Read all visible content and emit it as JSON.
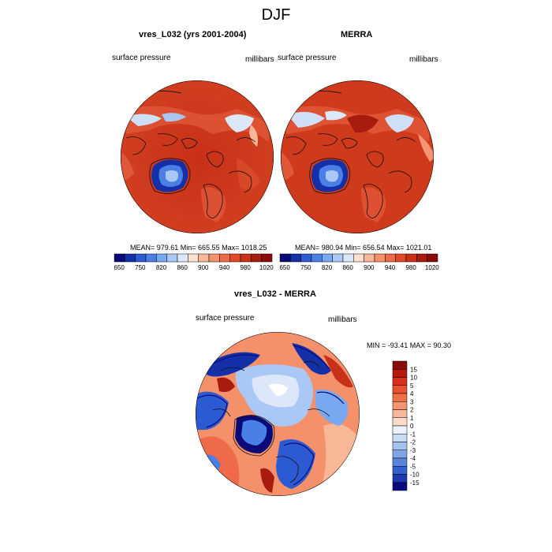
{
  "figure_title": "DJF",
  "chart_data": [
    {
      "type": "heatmap",
      "title": "vres_L032 (yrs 2001-2004)",
      "field": "surface pressure",
      "units": "millibars",
      "projection": "polar stereographic (North Pole)",
      "stats": "MEAN= 979.61  Min= 665.55  Max= 1018.25",
      "mean": 979.61,
      "min": 665.55,
      "max": 1018.25,
      "colorbar": {
        "orientation": "horizontal",
        "tick_labels": [
          "650",
          "750",
          "820",
          "860",
          "900",
          "940",
          "980",
          "1020"
        ],
        "colors": [
          "#0a0a78",
          "#1430a8",
          "#2c5ad2",
          "#4a80e6",
          "#78a8f0",
          "#aac8f6",
          "#dce8fa",
          "#fde0d0",
          "#f8b898",
          "#f4906a",
          "#ee6a48",
          "#e04828",
          "#c83018",
          "#a81c10",
          "#8a0c08"
        ]
      }
    },
    {
      "type": "heatmap",
      "title": "MERRA",
      "field": "surface pressure",
      "units": "millibars",
      "projection": "polar stereographic (North Pole)",
      "stats": "MEAN= 980.94  Min= 656.54  Max= 1021.01",
      "mean": 980.94,
      "min": 656.54,
      "max": 1021.01,
      "colorbar": {
        "orientation": "horizontal",
        "tick_labels": [
          "650",
          "750",
          "820",
          "860",
          "900",
          "940",
          "980",
          "1020"
        ],
        "colors": [
          "#0a0a78",
          "#1430a8",
          "#2c5ad2",
          "#4a80e6",
          "#78a8f0",
          "#aac8f6",
          "#dce8fa",
          "#fde0d0",
          "#f8b898",
          "#f4906a",
          "#ee6a48",
          "#e04828",
          "#c83018",
          "#a81c10",
          "#8a0c08"
        ]
      }
    },
    {
      "type": "heatmap",
      "title": "vres_L032 - MERRA",
      "field": "surface pressure",
      "units": "millibars",
      "projection": "polar stereographic (North Pole)",
      "stats": "MIN = -93.41 MAX =  90.30",
      "min": -93.41,
      "max": 90.3,
      "colorbar": {
        "orientation": "vertical",
        "tick_labels": [
          "15",
          "10",
          "5",
          "4",
          "3",
          "2",
          "1",
          "0",
          "-1",
          "-2",
          "-3",
          "-4",
          "-5",
          "-10",
          "-15"
        ],
        "colors": [
          "#8a0c08",
          "#b8180c",
          "#d8301c",
          "#e8502e",
          "#f07048",
          "#f49470",
          "#f8b89c",
          "#fcdcc8",
          "#ecf2fc",
          "#c8dcf6",
          "#a4c2ee",
          "#80a4e6",
          "#5a84dc",
          "#3460cc",
          "#1c38b0",
          "#0a0a80"
        ]
      }
    }
  ]
}
